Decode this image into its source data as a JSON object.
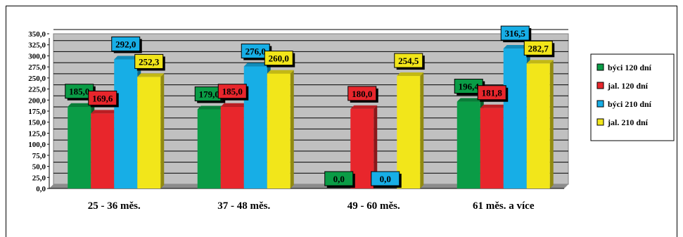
{
  "chart_data": {
    "type": "bar",
    "categories": [
      "25 - 36 měs.",
      "37 - 48  měs.",
      "49 - 60 měs.",
      "61 měs. a více"
    ],
    "series": [
      {
        "name": "býci 120 dní",
        "color": "#0a9c46",
        "values": [
          185.0,
          179.0,
          0.0,
          196.4
        ],
        "labels": [
          "185,0",
          "179,0",
          "0,0",
          "196,4"
        ]
      },
      {
        "name": "jal. 120 dní",
        "color": "#e8262c",
        "values": [
          169.6,
          185.0,
          180.0,
          181.8
        ],
        "labels": [
          "169,6",
          "185,0",
          "180,0",
          "181,8"
        ]
      },
      {
        "name": "býci 210 dní",
        "color": "#17aee6",
        "values": [
          292.0,
          276.0,
          0.0,
          316.5
        ],
        "labels": [
          "292,0",
          "276,0",
          "0,0",
          "316,5"
        ]
      },
      {
        "name": "jal. 210 dní",
        "color": "#f2e61a",
        "values": [
          252.3,
          260.0,
          254.5,
          282.7
        ],
        "labels": [
          "252,3",
          "260,0",
          "254,5",
          "282,7"
        ]
      }
    ],
    "ylim": [
      0,
      350
    ],
    "ytick_step": 25,
    "ytick_labels": [
      "0,0",
      "25,0",
      "50,0",
      "75,0",
      "100,0",
      "125,0",
      "150,0",
      "175,0",
      "200,0",
      "225,0",
      "250,0",
      "275,0",
      "300,0",
      "325,0",
      "350,0"
    ],
    "grid": true,
    "legend_position": "right",
    "plot_background": "#c0c0c0"
  }
}
